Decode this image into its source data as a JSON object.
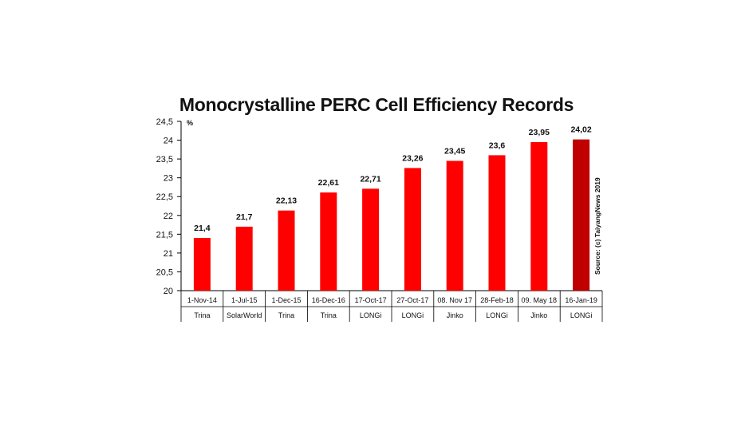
{
  "chart_data": {
    "type": "bar",
    "title": "Monocrystalline PERC Cell Efficiency Records",
    "ylabel": "%",
    "ylim": [
      20,
      24.5
    ],
    "yticks": [
      "20",
      "20,5",
      "21",
      "21,5",
      "22",
      "22,5",
      "23",
      "23,5",
      "24",
      "24,5"
    ],
    "categories": [
      "1-Nov-14",
      "1-Jul-15",
      "1-Dec-15",
      "16-Dec-16",
      "17-Oct-17",
      "27-Oct-17",
      "08. Nov 17",
      "28-Feb-18",
      "09. May 18",
      "16-Jan-19"
    ],
    "companies": [
      "Trina",
      "SolarWorld",
      "Trina",
      "Trina",
      "LONGi",
      "LONGi",
      "Jinko",
      "LONGi",
      "Jinko",
      "LONGi"
    ],
    "values": [
      21.4,
      21.7,
      22.13,
      22.61,
      22.71,
      23.26,
      23.45,
      23.6,
      23.95,
      24.02
    ],
    "value_labels": [
      "21,4",
      "21,7",
      "22,13",
      "22,61",
      "22,71",
      "23,26",
      "23,45",
      "23,6",
      "23,95",
      "24,02"
    ],
    "grid": false,
    "legend": "none",
    "source_note": "Source: (c) TaiyangNews 2019",
    "colors": {
      "bar": "#ff0000",
      "bar_highlight": "#c00000",
      "axis": "#000000"
    }
  }
}
